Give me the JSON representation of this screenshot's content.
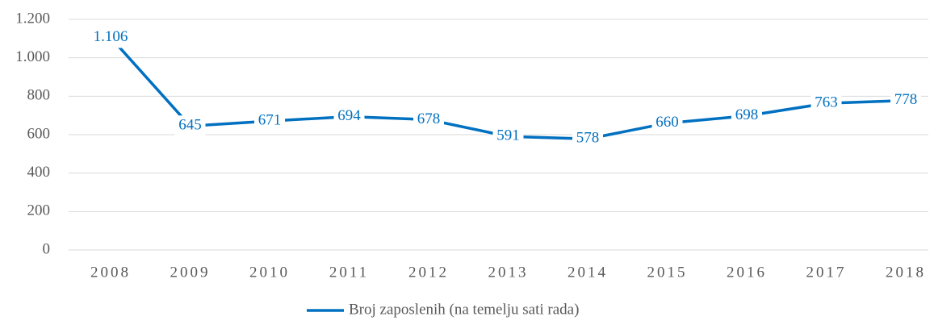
{
  "chart_data": {
    "type": "line",
    "categories": [
      "2008",
      "2009",
      "2010",
      "2011",
      "2012",
      "2013",
      "2014",
      "2015",
      "2016",
      "2017",
      "2018"
    ],
    "series": [
      {
        "name": "Broj zaposlenih (na temelju sati rada)",
        "color": "#0070c0",
        "values": [
          1106,
          645,
          671,
          694,
          678,
          591,
          578,
          660,
          698,
          763,
          778
        ],
        "value_labels": [
          "1.106",
          "645",
          "671",
          "694",
          "678",
          "591",
          "578",
          "660",
          "698",
          "763",
          "778"
        ]
      }
    ],
    "ylim": [
      0,
      1200
    ],
    "yticks": [
      0,
      200,
      400,
      600,
      800,
      {
        "value": 1000,
        "label": "1.000"
      },
      {
        "value": 1200,
        "label": "1.200"
      }
    ],
    "grid": true,
    "legend": "bottom"
  }
}
